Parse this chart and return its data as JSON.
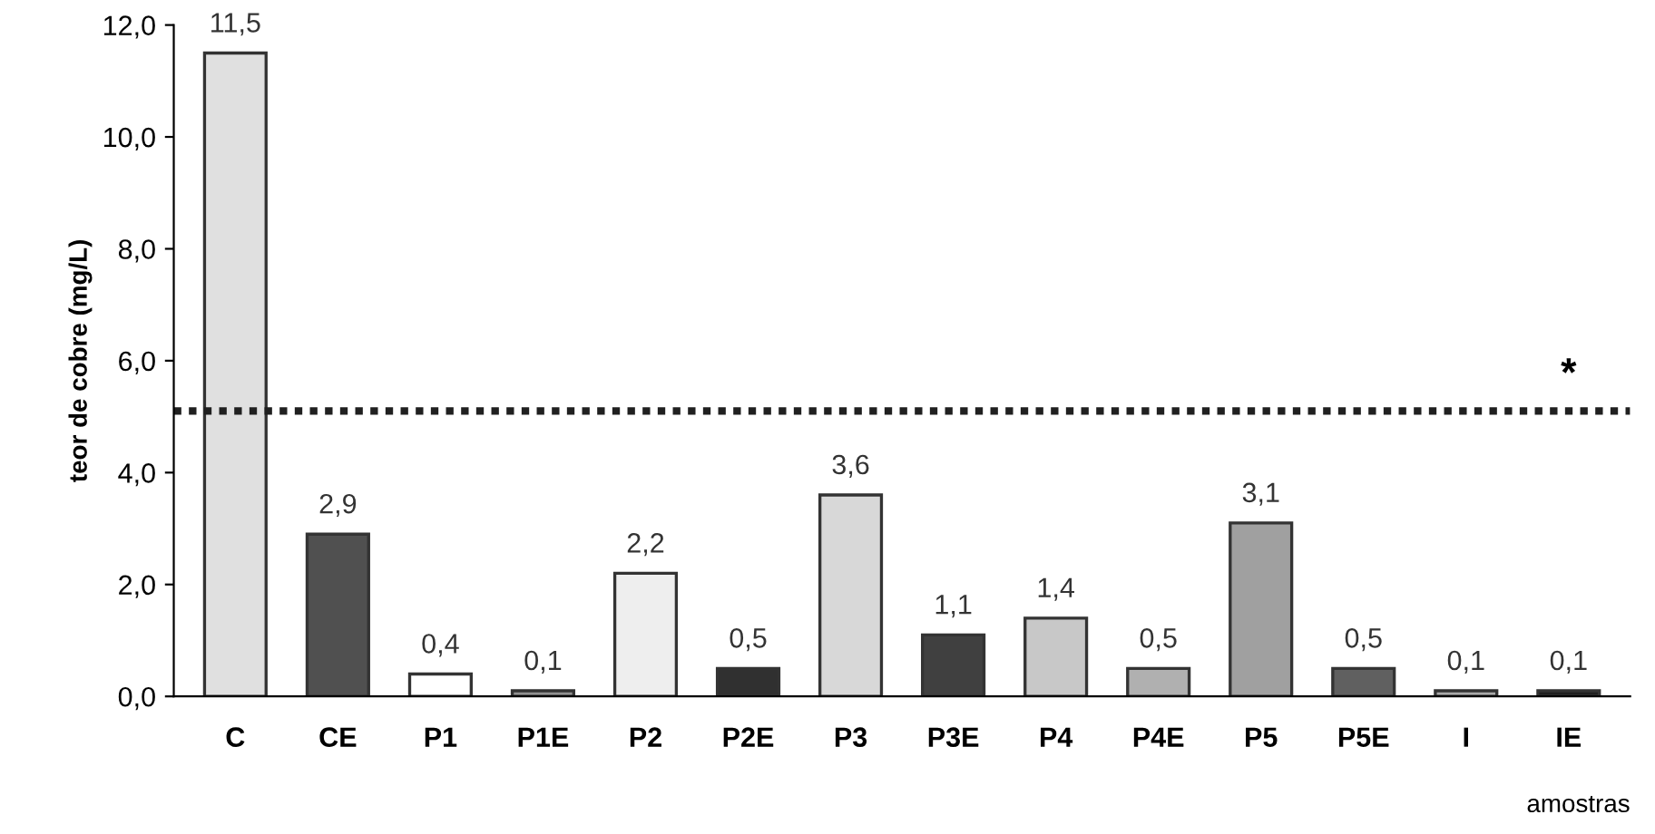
{
  "chart_data": {
    "type": "bar",
    "ylabel": "teor de cobre (mg/L)",
    "xlabel": "amostras",
    "categories": [
      "C",
      "CE",
      "P1",
      "P1E",
      "P2",
      "P2E",
      "P3",
      "P3E",
      "P4",
      "P4E",
      "P5",
      "P5E",
      "I",
      "IE"
    ],
    "values": [
      11.5,
      2.9,
      0.4,
      0.1,
      2.2,
      0.5,
      3.6,
      1.1,
      1.4,
      0.5,
      3.1,
      0.5,
      0.1,
      0.1
    ],
    "value_labels": [
      "11,5",
      "2,9",
      "0,4",
      "0,1",
      "2,2",
      "0,5",
      "3,6",
      "1,1",
      "1,4",
      "0,5",
      "3,1",
      "0,5",
      "0,1",
      "0,1"
    ],
    "colors": [
      "#e0e0e0",
      "#505050",
      "#ffffff",
      "#909090",
      "#eeeeee",
      "#303030",
      "#d8d8d8",
      "#404040",
      "#c8c8c8",
      "#b0b0b0",
      "#a0a0a0",
      "#606060",
      "#a8a8a8",
      "#202020"
    ],
    "ylim": [
      0,
      12
    ],
    "yticks": [
      {
        "value": 0,
        "label": "0,0"
      },
      {
        "value": 2,
        "label": "2,0"
      },
      {
        "value": 4,
        "label": "4,0"
      },
      {
        "value": 6,
        "label": "6,0"
      },
      {
        "value": 8,
        "label": "8,0"
      },
      {
        "value": 10,
        "label": "10,0"
      },
      {
        "value": 12,
        "label": "12,0"
      }
    ],
    "ref_lines": [
      {
        "axis": "y",
        "value": 5.1,
        "label": "*",
        "color": "#202020",
        "line_style": "dotted"
      }
    ],
    "grid": false,
    "legend": false
  }
}
